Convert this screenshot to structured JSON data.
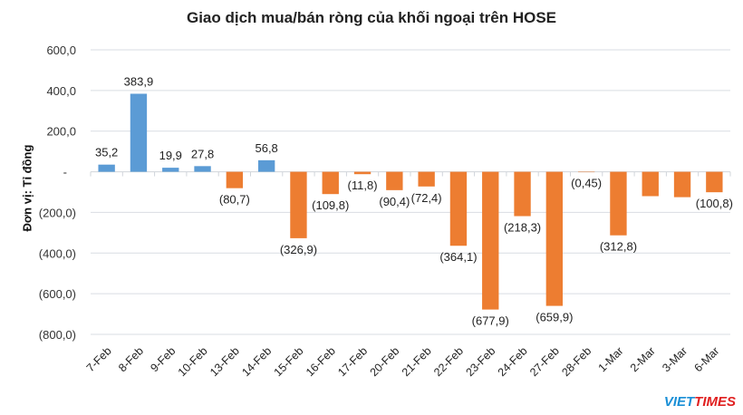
{
  "chart_data": {
    "type": "bar",
    "title": "Giao dịch mua/bán ròng của khối ngoại trên HOSE",
    "ylabel": "Đơn vị: Tỉ đồng",
    "xlabel": "",
    "ylim": [
      -800,
      600
    ],
    "yticks": [
      600,
      400,
      200,
      0,
      -200,
      -400,
      -600,
      -800
    ],
    "ytick_labels": [
      "600,0",
      "400,0",
      "200,0",
      "-",
      "(200,0)",
      "(400,0)",
      "(600,0)",
      "(800,0)"
    ],
    "grid": true,
    "categories": [
      "7-Feb",
      "8-Feb",
      "9-Feb",
      "10-Feb",
      "13-Feb",
      "14-Feb",
      "15-Feb",
      "16-Feb",
      "17-Feb",
      "20-Feb",
      "21-Feb",
      "22-Feb",
      "23-Feb",
      "24-Feb",
      "27-Feb",
      "28-Feb",
      "1-Mar",
      "2-Mar",
      "3-Mar",
      "6-Mar"
    ],
    "values": [
      35.2,
      383.9,
      19.9,
      27.8,
      -80.7,
      56.8,
      -326.9,
      -109.8,
      -11.8,
      -90.4,
      -72.4,
      -364.1,
      -677.9,
      -218.3,
      -659.9,
      -0.45,
      -312.8,
      -120,
      -125,
      -100.8
    ],
    "data_labels": [
      "35,2",
      "383,9",
      "19,9",
      "27,8",
      "(80,7)",
      "56,8",
      "(326,9)",
      "(109,8)",
      "(11,8)",
      "(90,4)",
      "(72,4)",
      "(364,1)",
      "(677,9)",
      "(218,3)",
      "(659,9)",
      "(0,45)",
      "(312,8)",
      "",
      "",
      "(100,8)"
    ],
    "colors": {
      "positive": "#5b9bd5",
      "negative": "#ed7d31"
    }
  },
  "watermark": {
    "part1": "VIET",
    "part2": "TIMES",
    "color1": "#1a8fd6",
    "color2": "#e02020"
  }
}
